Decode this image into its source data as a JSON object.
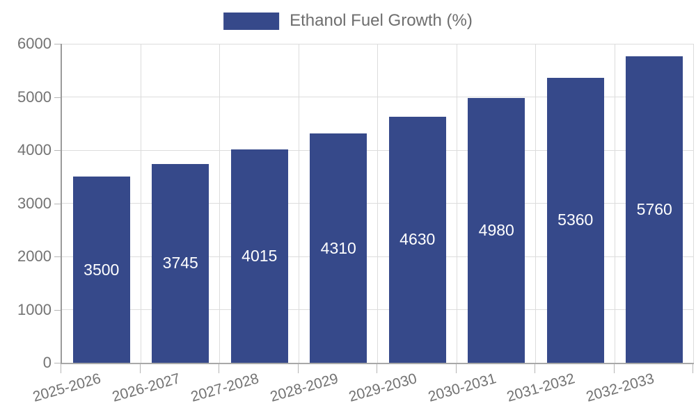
{
  "legend": {
    "label": "Ethanol Fuel Growth (%)"
  },
  "chart_data": {
    "type": "bar",
    "title": "Ethanol Fuel Growth (%)",
    "categories": [
      "2025-2026",
      "2026-2027",
      "2027-2028",
      "2028-2029",
      "2029-2030",
      "2030-2031",
      "2031-2032",
      "2032-2033"
    ],
    "values": [
      3500,
      3745,
      4015,
      4310,
      4630,
      4980,
      5360,
      5760
    ],
    "xlabel": "",
    "ylabel": "",
    "ylim": [
      0,
      6000
    ],
    "yticks": [
      0,
      1000,
      2000,
      3000,
      4000,
      5000,
      6000
    ],
    "grid": true,
    "legend_position": "top-center",
    "value_label_style": "white-centered-inside-bar",
    "xlabel_rotation_deg": -16
  },
  "colors": {
    "bar": "#36498A",
    "value_label": "#ffffff",
    "axis_text": "#737373",
    "legend_text": "#6e6e6e",
    "gridline": "#dcdcdc",
    "tick": "#b5b5b5",
    "axis_line": "#9a9a9a",
    "background": "#ffffff"
  }
}
